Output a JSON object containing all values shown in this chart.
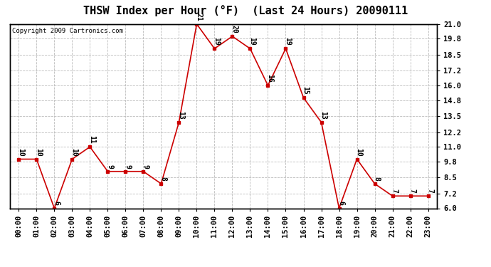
{
  "title": "THSW Index per Hour (°F)  (Last 24 Hours) 20090111",
  "copyright": "Copyright 2009 Cartronics.com",
  "hours": [
    "00:00",
    "01:00",
    "02:00",
    "03:00",
    "04:00",
    "05:00",
    "06:00",
    "07:00",
    "08:00",
    "09:00",
    "10:00",
    "11:00",
    "12:00",
    "13:00",
    "14:00",
    "15:00",
    "16:00",
    "17:00",
    "18:00",
    "19:00",
    "20:00",
    "21:00",
    "22:00",
    "23:00"
  ],
  "values": [
    10,
    10,
    6,
    10,
    11,
    9,
    9,
    9,
    8,
    13,
    21,
    19,
    20,
    19,
    16,
    19,
    15,
    13,
    6,
    10,
    8,
    7,
    7,
    7
  ],
  "ylim": [
    6.0,
    21.0
  ],
  "yticks": [
    6.0,
    7.2,
    8.5,
    9.8,
    11.0,
    12.2,
    13.5,
    14.8,
    16.0,
    17.2,
    18.5,
    19.8,
    21.0
  ],
  "ytick_labels": [
    "6.0",
    "7.2",
    "8.5",
    "9.8",
    "11.0",
    "12.2",
    "13.5",
    "14.8",
    "16.0",
    "17.2",
    "18.5",
    "19.8",
    "21.0"
  ],
  "line_color": "#cc0000",
  "marker_color": "#cc0000",
  "bg_color": "#ffffff",
  "plot_bg_color": "#ffffff",
  "grid_color": "#bbbbbb",
  "title_fontsize": 11,
  "label_fontsize": 7.5,
  "annotation_fontsize": 7,
  "copyright_fontsize": 6.5
}
